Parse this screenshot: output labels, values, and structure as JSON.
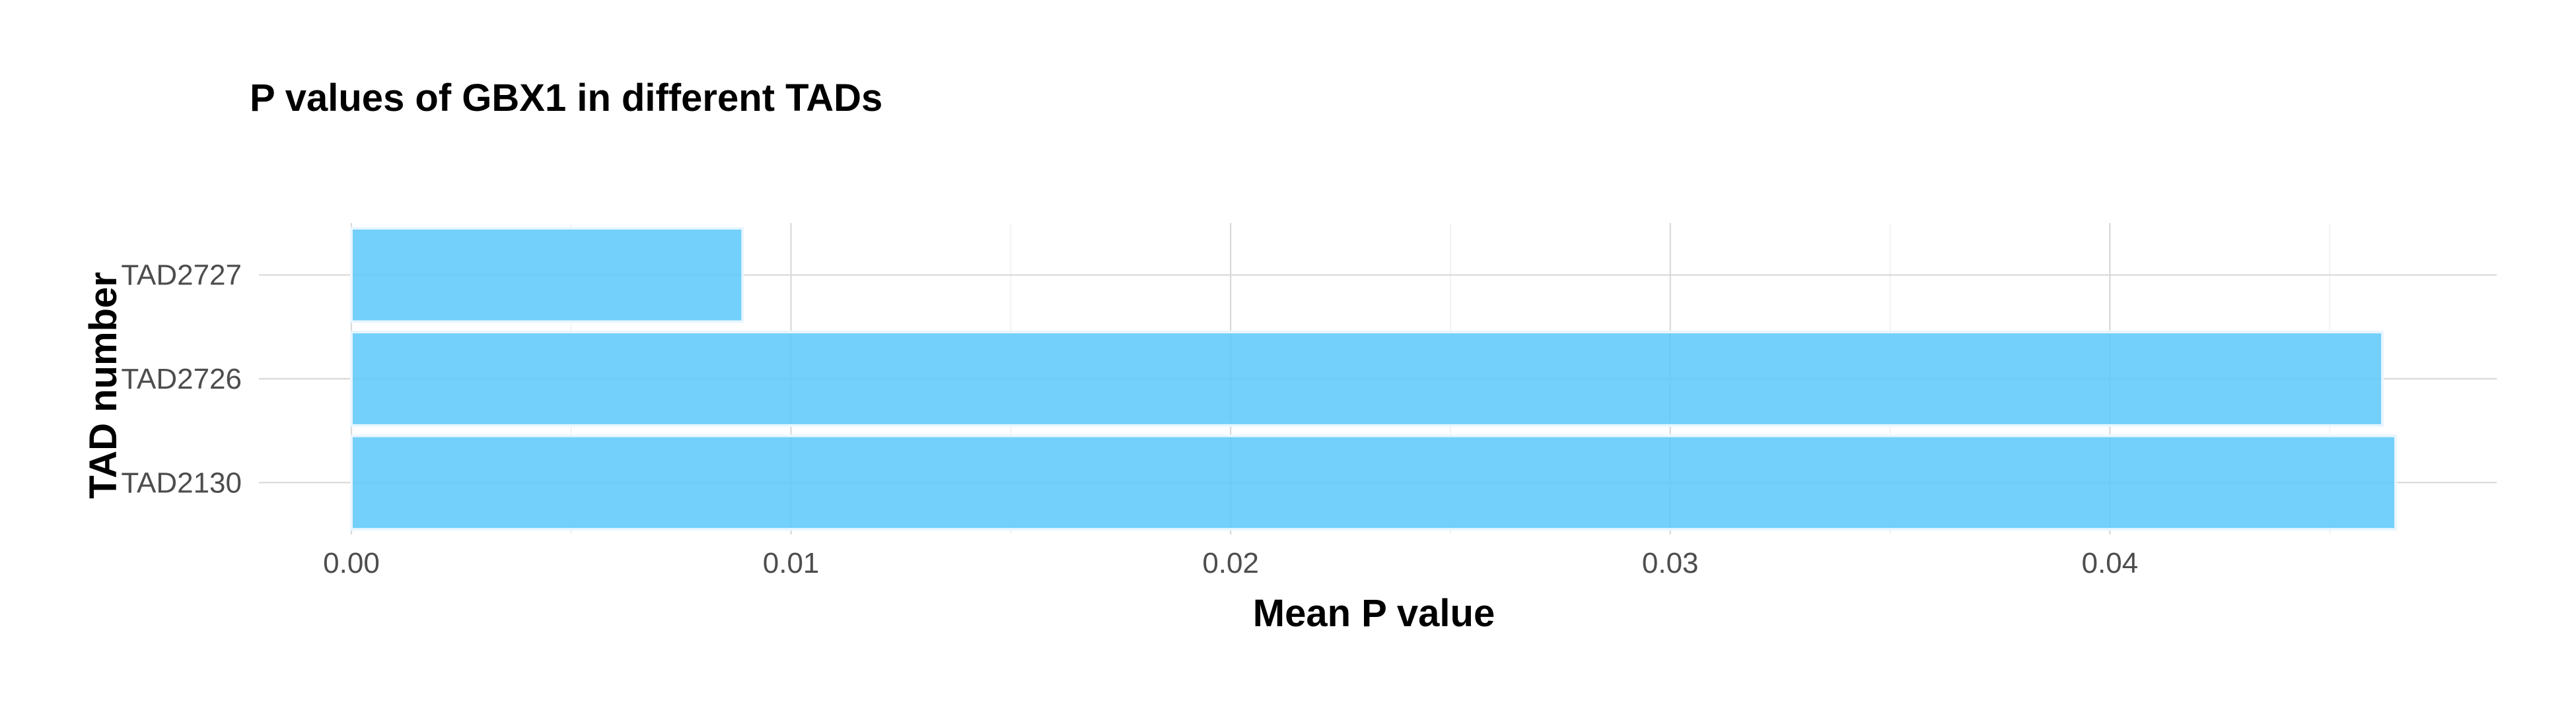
{
  "chart_data": {
    "type": "bar",
    "orientation": "horizontal",
    "title": "P values of GBX1 in different TADs",
    "xlabel": "Mean P value",
    "ylabel": "TAD number",
    "categories": [
      "TAD2727",
      "TAD2726",
      "TAD2130"
    ],
    "values": [
      0.0089,
      0.0462,
      0.0465
    ],
    "xlim": [
      0,
      0.0488
    ],
    "xticks": [
      0.0,
      0.01,
      0.02,
      0.03,
      0.04
    ],
    "xtick_labels": [
      "0.00",
      "0.01",
      "0.02",
      "0.03",
      "0.04"
    ],
    "grid": true,
    "legend": "none",
    "bar_color": "#5bc8fa"
  }
}
